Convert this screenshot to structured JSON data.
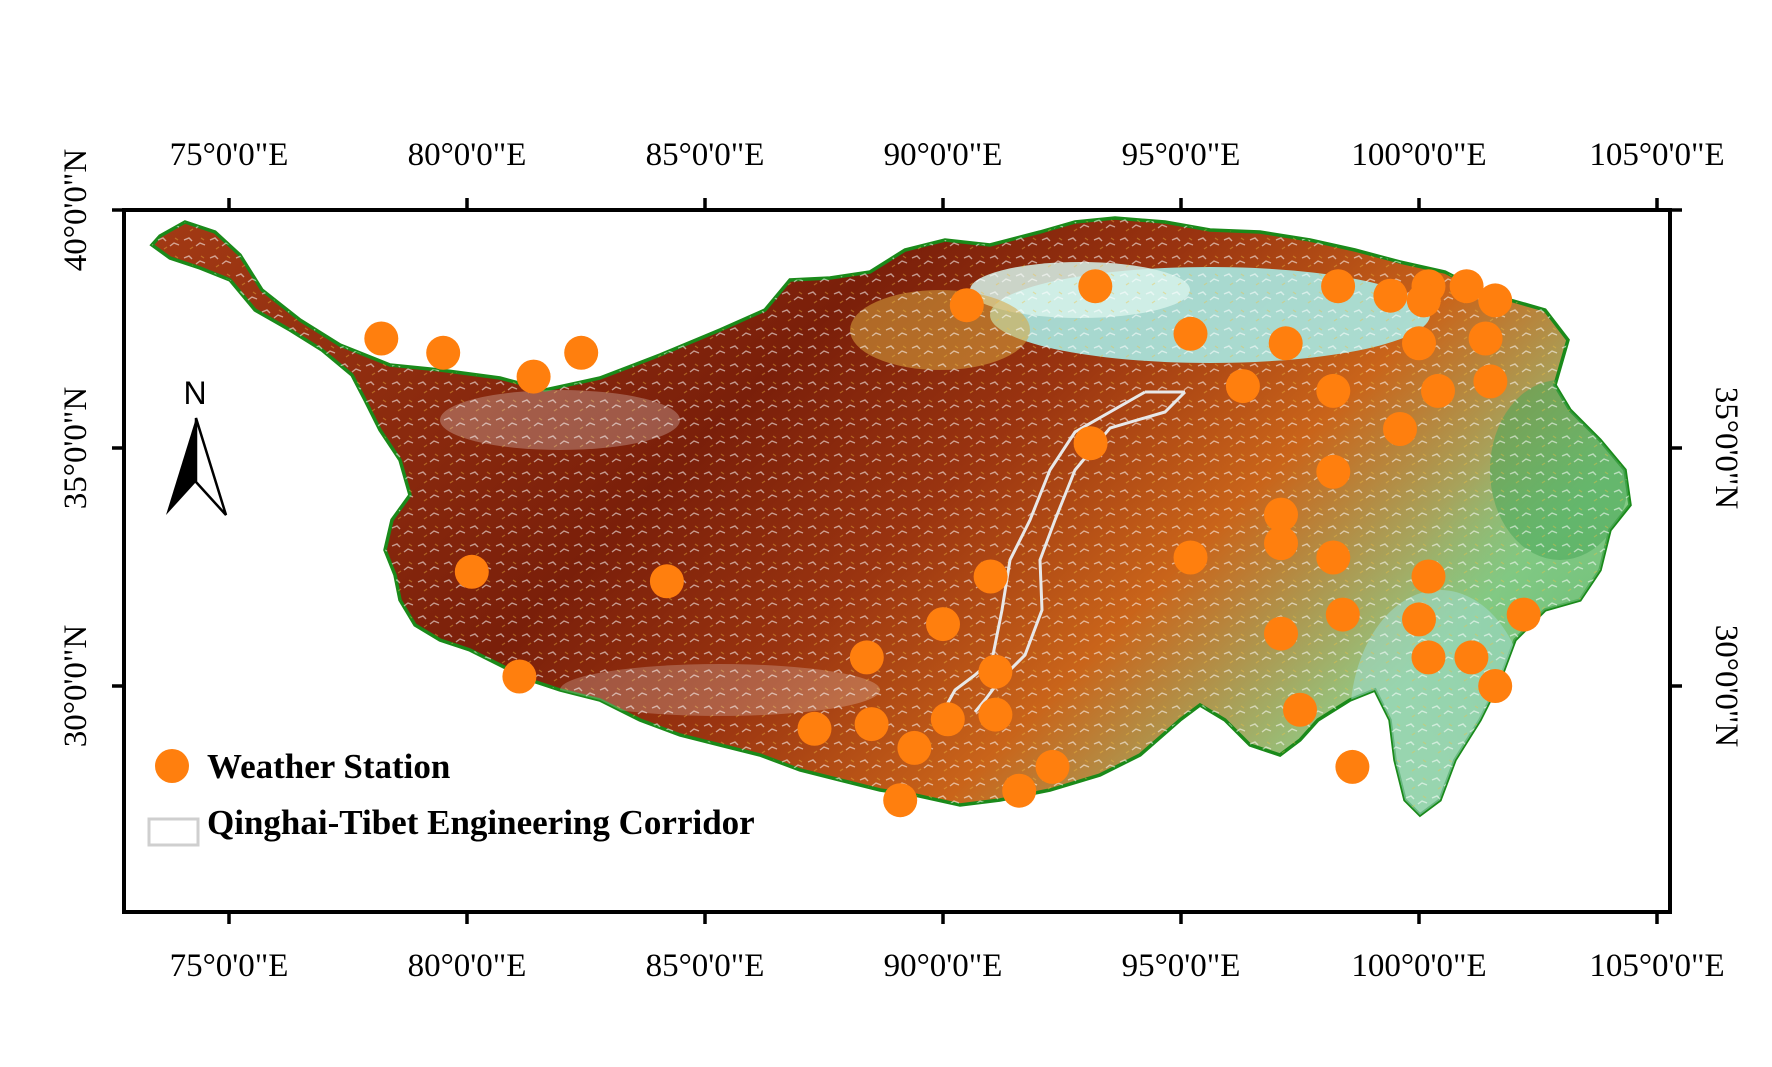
{
  "axes": {
    "top_labels": [
      "75°0'0\"E",
      "80°0'0\"E",
      "85°0'0\"E",
      "90°0'0\"E",
      "95°0'0\"E",
      "100°0'0\"E",
      "105°0'0\"E"
    ],
    "bottom_labels": [
      "75°0'0\"E",
      "80°0'0\"E",
      "85°0'0\"E",
      "90°0'0\"E",
      "95°0'0\"E",
      "100°0'0\"E",
      "105°0'0\"E"
    ],
    "left_labels": [
      "40°0'0\"N",
      "35°0'0\"N",
      "30°0'0\"N"
    ],
    "right_labels": [
      "35°0'0\"N",
      "30°0'0\"N"
    ],
    "lon_ticks": [
      75,
      80,
      85,
      90,
      95,
      100,
      105
    ],
    "lat_ticks": [
      40,
      35,
      30
    ]
  },
  "north_arrow": {
    "label": "N"
  },
  "legend": {
    "station_label": "Weather Station",
    "corridor_label": "Qinghai-Tibet Engineering Corridor",
    "placement": "bottom-left"
  },
  "colors": {
    "station": "#ff7f0e",
    "corridor": "#e8e8e8",
    "border": "#1a8a1a",
    "relief_high": "#7a1f0a",
    "relief_mid": "#c9641a",
    "relief_low": "#8fcf8a",
    "basin": "#a8e6e0",
    "snow": "#ffffff"
  },
  "stations": [
    {
      "lon": 78.2,
      "lat": 37.3
    },
    {
      "lon": 79.5,
      "lat": 37.0
    },
    {
      "lon": 81.4,
      "lat": 36.5
    },
    {
      "lon": 82.4,
      "lat": 37.0
    },
    {
      "lon": 90.5,
      "lat": 38.0
    },
    {
      "lon": 93.2,
      "lat": 38.4
    },
    {
      "lon": 95.2,
      "lat": 37.4
    },
    {
      "lon": 97.2,
      "lat": 37.2
    },
    {
      "lon": 98.3,
      "lat": 38.4
    },
    {
      "lon": 99.4,
      "lat": 38.2
    },
    {
      "lon": 100.2,
      "lat": 38.4
    },
    {
      "lon": 100.1,
      "lat": 38.1
    },
    {
      "lon": 101.0,
      "lat": 38.4
    },
    {
      "lon": 101.6,
      "lat": 38.1
    },
    {
      "lon": 96.3,
      "lat": 36.3
    },
    {
      "lon": 98.2,
      "lat": 36.2
    },
    {
      "lon": 100.0,
      "lat": 37.2
    },
    {
      "lon": 101.4,
      "lat": 37.3
    },
    {
      "lon": 100.4,
      "lat": 36.2
    },
    {
      "lon": 101.5,
      "lat": 36.4
    },
    {
      "lon": 99.6,
      "lat": 35.4
    },
    {
      "lon": 93.1,
      "lat": 35.1
    },
    {
      "lon": 98.2,
      "lat": 34.5
    },
    {
      "lon": 97.1,
      "lat": 33.6
    },
    {
      "lon": 97.1,
      "lat": 33.0
    },
    {
      "lon": 95.2,
      "lat": 32.7
    },
    {
      "lon": 98.2,
      "lat": 32.7
    },
    {
      "lon": 100.2,
      "lat": 32.3
    },
    {
      "lon": 102.2,
      "lat": 31.5
    },
    {
      "lon": 97.1,
      "lat": 31.1
    },
    {
      "lon": 98.4,
      "lat": 31.5
    },
    {
      "lon": 100.0,
      "lat": 31.4
    },
    {
      "lon": 100.2,
      "lat": 30.6
    },
    {
      "lon": 101.1,
      "lat": 30.6
    },
    {
      "lon": 101.6,
      "lat": 30.0
    },
    {
      "lon": 97.5,
      "lat": 29.5
    },
    {
      "lon": 98.6,
      "lat": 28.3
    },
    {
      "lon": 80.1,
      "lat": 32.4
    },
    {
      "lon": 84.2,
      "lat": 32.2
    },
    {
      "lon": 81.1,
      "lat": 30.2
    },
    {
      "lon": 91.0,
      "lat": 32.3
    },
    {
      "lon": 90.0,
      "lat": 31.3
    },
    {
      "lon": 88.4,
      "lat": 30.6
    },
    {
      "lon": 91.1,
      "lat": 30.3
    },
    {
      "lon": 87.3,
      "lat": 29.1
    },
    {
      "lon": 88.5,
      "lat": 29.2
    },
    {
      "lon": 90.1,
      "lat": 29.3
    },
    {
      "lon": 91.1,
      "lat": 29.4
    },
    {
      "lon": 89.4,
      "lat": 28.7
    },
    {
      "lon": 92.3,
      "lat": 28.3
    },
    {
      "lon": 89.1,
      "lat": 27.6
    },
    {
      "lon": 91.6,
      "lat": 27.8
    }
  ]
}
